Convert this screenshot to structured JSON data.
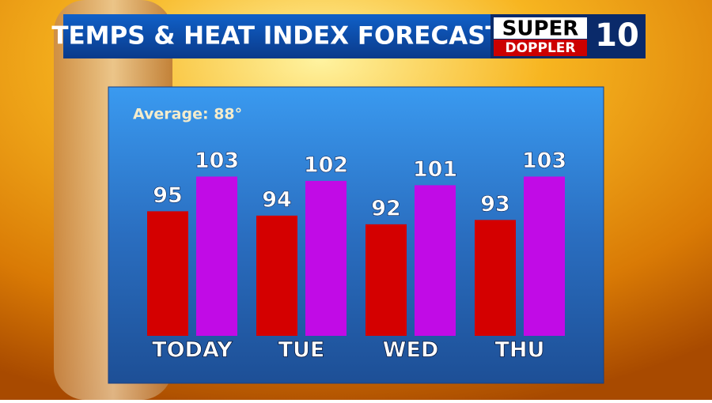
{
  "chart_data": {
    "type": "bar",
    "title": "TEMPS & HEAT INDEX FORECAST",
    "annotation": "Average: 88°",
    "logo": {
      "top": "SUPER",
      "bottom": "DOPPLER",
      "number": "10"
    },
    "categories": [
      "TODAY",
      "TUE",
      "WED",
      "THU"
    ],
    "series": [
      {
        "color": "#d40000",
        "values": [
          95,
          94,
          92,
          93
        ]
      },
      {
        "color": "#c10be6",
        "values": [
          103,
          102,
          101,
          103
        ]
      }
    ],
    "ylim": [
      66.3,
      110
    ]
  }
}
